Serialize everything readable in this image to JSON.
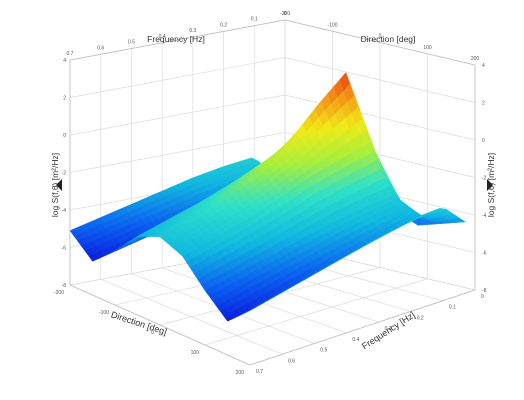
{
  "chart_data": {
    "type": "surface3d",
    "title": "",
    "colorscale": [
      "#0a0ad8",
      "#0a5cf0",
      "#10b8e0",
      "#2ee0c8",
      "#a8ee3c",
      "#f2ea18",
      "#f49018",
      "#e02010"
    ],
    "axes": {
      "frequency": {
        "label": "Frequency [Hz]",
        "range": [
          0.0,
          0.7
        ],
        "ticks_back": [
          "0.7",
          "0.6",
          "0.5",
          "0.4",
          "0.3",
          "0.2",
          "0.1",
          "0"
        ],
        "ticks_front": [
          "0",
          "0.1",
          "0.2",
          "0.3",
          "0.4",
          "0.5",
          "0.6",
          "0.7"
        ]
      },
      "direction": {
        "label": "Direction [deg]",
        "range": [
          -200,
          200
        ],
        "ticks_back": [
          "-200",
          "-100",
          "0",
          "100",
          "200"
        ],
        "ticks_front": [
          "-200",
          "-100",
          "0",
          "100",
          "200"
        ]
      },
      "value": {
        "label": "log S(f,θ) [m²/Hz]",
        "range": [
          -8,
          4
        ],
        "ticks": [
          "-8",
          "-6",
          "-4",
          "-2",
          "0",
          "2",
          "4"
        ]
      }
    },
    "surface_grid": {
      "frequency": [
        0.03,
        0.1,
        0.2,
        0.3,
        0.4,
        0.5,
        0.6,
        0.7
      ],
      "direction": [
        -200,
        -150,
        -100,
        -50,
        0,
        50,
        100,
        150,
        200
      ],
      "log_S": [
        [
          -4.5,
          -5.0,
          -4.6,
          -4.0,
          -4.0,
          -4.5,
          -5.0,
          -4.6,
          -4.2
        ],
        [
          -3.0,
          -3.8,
          -3.0,
          -0.5,
          3.0,
          -0.5,
          -3.0,
          -3.8,
          -3.0
        ],
        [
          -3.2,
          -4.2,
          -3.2,
          -1.0,
          1.5,
          -1.0,
          -3.2,
          -4.2,
          -3.2
        ],
        [
          -3.5,
          -4.6,
          -3.5,
          -1.5,
          -0.2,
          -1.5,
          -3.5,
          -4.6,
          -3.5
        ],
        [
          -3.9,
          -5.0,
          -3.9,
          -2.2,
          -1.2,
          -2.2,
          -3.9,
          -5.0,
          -3.9
        ],
        [
          -4.3,
          -5.4,
          -4.3,
          -2.8,
          -2.0,
          -2.8,
          -4.3,
          -5.4,
          -4.3
        ],
        [
          -4.7,
          -5.8,
          -4.7,
          -3.3,
          -2.7,
          -3.3,
          -4.7,
          -5.8,
          -4.7
        ],
        [
          -5.1,
          -6.2,
          -5.1,
          -3.8,
          -3.3,
          -3.8,
          -5.1,
          -6.2,
          -5.1
        ]
      ]
    },
    "grid": true
  }
}
